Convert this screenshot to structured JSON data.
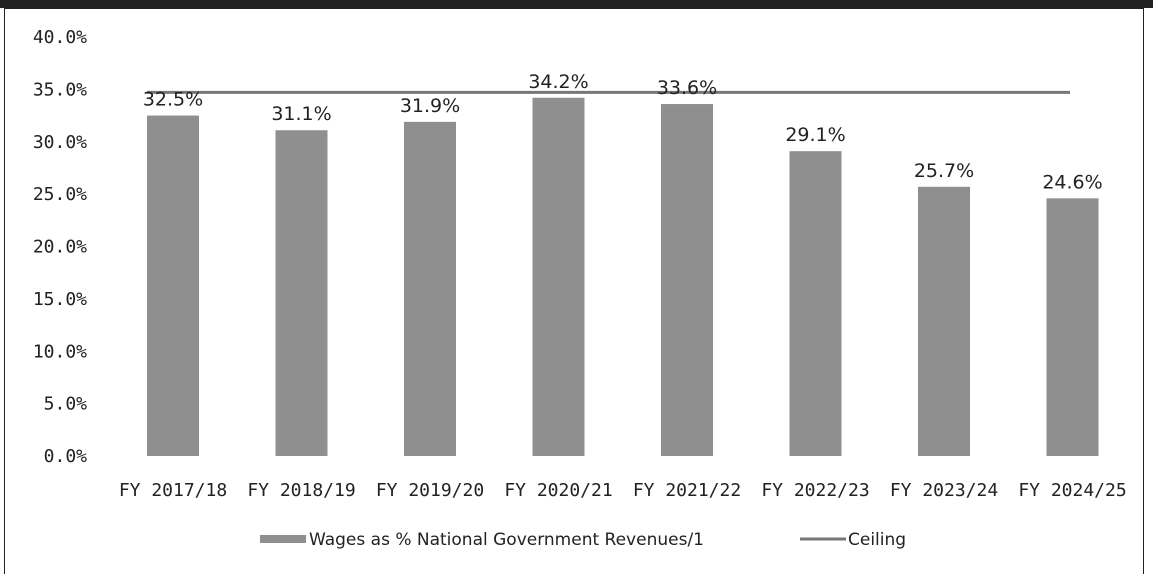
{
  "chart_data": {
    "type": "bar",
    "categories": [
      "FY 2017/18",
      "FY 2018/19",
      "FY 2019/20",
      "FY 2020/21",
      "FY 2021/22",
      "FY 2022/23",
      "FY 2023/24",
      "FY 2024/25"
    ],
    "series": [
      {
        "name": "Wages as % National Government Revenues/1",
        "values": [
          32.5,
          31.1,
          31.9,
          34.2,
          33.6,
          29.1,
          25.7,
          24.6
        ],
        "data_labels": [
          "32.5%",
          "31.1%",
          "31.9%",
          "34.2%",
          "33.6%",
          "29.1%",
          "25.7%",
          "24.6%"
        ],
        "color": "#8f8f8f"
      },
      {
        "name": "Ceiling",
        "type": "line",
        "value": 35.0,
        "color": "#777777"
      }
    ],
    "y_ticks": [
      "0.0%",
      "5.0%",
      "10.0%",
      "15.0%",
      "20.0%",
      "25.0%",
      "30.0%",
      "35.0%",
      "40.0%"
    ],
    "ylim": [
      0,
      40
    ],
    "grid": false,
    "legend": "bottom"
  }
}
